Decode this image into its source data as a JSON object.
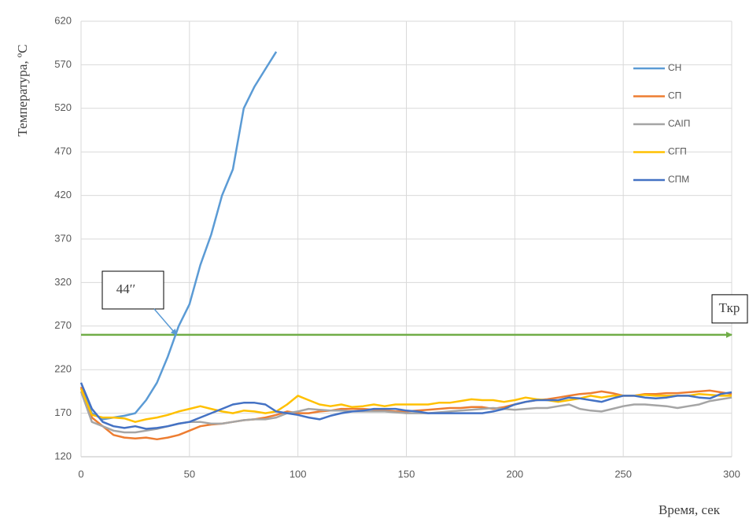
{
  "chart_data": {
    "type": "line",
    "ylabel": "Температура, ºС",
    "xlabel": "Время, сек",
    "x": [
      0,
      5,
      10,
      15,
      20,
      25,
      30,
      35,
      40,
      45,
      50,
      55,
      60,
      65,
      70,
      75,
      80,
      85,
      90,
      95,
      100,
      105,
      110,
      115,
      120,
      125,
      130,
      135,
      140,
      145,
      150,
      155,
      160,
      165,
      170,
      175,
      180,
      185,
      190,
      195,
      200,
      205,
      210,
      215,
      220,
      225,
      230,
      235,
      240,
      245,
      250,
      255,
      260,
      265,
      270,
      275,
      280,
      285,
      290,
      295,
      300
    ],
    "series": [
      {
        "name": "СН",
        "color": "#5b9bd5",
        "values": [
          200,
          170,
          163,
          165,
          167,
          170,
          185,
          205,
          235,
          270,
          295,
          340,
          375,
          420,
          450,
          520,
          545,
          565,
          585,
          null,
          null,
          null,
          null,
          null,
          null,
          null,
          null,
          null,
          null,
          null,
          null,
          null,
          null,
          null,
          null,
          null,
          null,
          null,
          null,
          null,
          null,
          null,
          null,
          null,
          null,
          null,
          null,
          null,
          null,
          null,
          null,
          null,
          null,
          null,
          null,
          null,
          null,
          null,
          null,
          null,
          null
        ]
      },
      {
        "name": "СП",
        "color": "#ed7d31",
        "values": [
          200,
          165,
          155,
          145,
          142,
          141,
          142,
          140,
          142,
          145,
          150,
          155,
          157,
          158,
          160,
          162,
          163,
          165,
          168,
          172,
          170,
          170,
          172,
          173,
          175,
          175,
          175,
          174,
          173,
          172,
          172,
          173,
          174,
          175,
          176,
          176,
          177,
          177,
          175,
          177,
          180,
          183,
          185,
          186,
          188,
          190,
          192,
          193,
          195,
          193,
          190,
          190,
          192,
          192,
          193,
          193,
          194,
          195,
          196,
          194,
          192
        ]
      },
      {
        "name": "САІП",
        "color": "#a5a5a5",
        "values": [
          195,
          160,
          155,
          150,
          148,
          148,
          150,
          152,
          155,
          158,
          160,
          160,
          158,
          158,
          160,
          162,
          163,
          163,
          165,
          170,
          172,
          175,
          174,
          173,
          173,
          172,
          172,
          172,
          172,
          171,
          170,
          170,
          170,
          171,
          172,
          173,
          174,
          175,
          176,
          175,
          174,
          175,
          176,
          176,
          178,
          180,
          175,
          173,
          172,
          175,
          178,
          180,
          180,
          179,
          178,
          176,
          178,
          180,
          184,
          186,
          188
        ]
      },
      {
        "name": "СГП",
        "color": "#ffc000",
        "values": [
          198,
          168,
          165,
          165,
          164,
          160,
          163,
          165,
          168,
          172,
          175,
          178,
          175,
          172,
          170,
          173,
          172,
          170,
          172,
          180,
          190,
          185,
          180,
          178,
          180,
          177,
          178,
          180,
          178,
          180,
          180,
          180,
          180,
          182,
          182,
          184,
          186,
          185,
          185,
          183,
          185,
          188,
          186,
          185,
          183,
          185,
          187,
          190,
          188,
          190,
          190,
          190,
          191,
          190,
          190,
          190,
          190,
          192,
          191,
          190,
          190
        ]
      },
      {
        "name": "СПМ",
        "color": "#4472c4",
        "values": [
          205,
          175,
          160,
          155,
          153,
          155,
          152,
          153,
          155,
          158,
          160,
          165,
          170,
          175,
          180,
          182,
          182,
          180,
          172,
          170,
          168,
          165,
          163,
          167,
          170,
          172,
          173,
          175,
          175,
          175,
          173,
          172,
          170,
          170,
          170,
          170,
          170,
          170,
          172,
          175,
          180,
          183,
          185,
          185,
          185,
          188,
          187,
          185,
          183,
          187,
          190,
          190,
          188,
          187,
          188,
          190,
          190,
          188,
          187,
          192,
          194
        ]
      }
    ],
    "threshold": {
      "value": 260,
      "label": "Ткр",
      "color": "#70ad47"
    },
    "annotation": {
      "text": "44′′",
      "x": 44,
      "y": 260
    },
    "xlim": [
      0,
      300
    ],
    "xticks": [
      0,
      50,
      100,
      150,
      200,
      250,
      300
    ],
    "ylim": [
      120,
      620
    ],
    "yticks": [
      120,
      170,
      220,
      270,
      320,
      370,
      420,
      470,
      520,
      570,
      620
    ],
    "grid": true,
    "legend": "right"
  }
}
